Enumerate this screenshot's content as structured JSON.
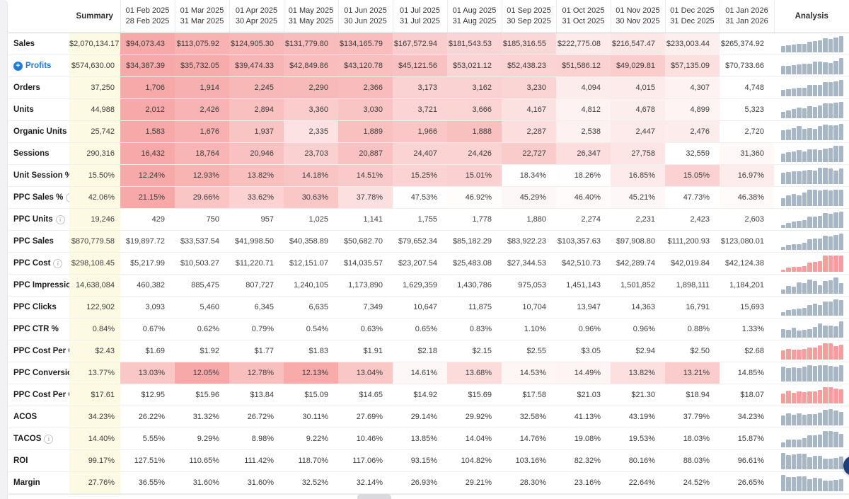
{
  "table": {
    "summary_label": "Summary",
    "analysis_label": "Analysis",
    "month_columns": [
      {
        "start": "01 Feb 2025",
        "end": "28 Feb 2025"
      },
      {
        "start": "01 Mar 2025",
        "end": "31 Mar 2025"
      },
      {
        "start": "01 Apr 2025",
        "end": "30 Apr 2025"
      },
      {
        "start": "01 May 2025",
        "end": "31 May 2025"
      },
      {
        "start": "01 Jun 2025",
        "end": "30 Jun 2025"
      },
      {
        "start": "01 Jul 2025",
        "end": "31 Jul 2025"
      },
      {
        "start": "01 Aug 2025",
        "end": "31 Aug 2025"
      },
      {
        "start": "01 Sep 2025",
        "end": "30 Sep 2025"
      },
      {
        "start": "01 Oct 2025",
        "end": "31 Oct 2025"
      },
      {
        "start": "01 Nov 2025",
        "end": "30 Nov 2025"
      },
      {
        "start": "01 Dec 2025",
        "end": "31 Dec 2025"
      },
      {
        "start": "01 Jan 2026",
        "end": "31 Jan 2026"
      }
    ],
    "rows": [
      {
        "label": "Sales",
        "info": false,
        "expandable": false,
        "heat": true,
        "bar": "gray",
        "summary": "$2,070,134.17",
        "values": [
          "$94,073.43",
          "$113,075.92",
          "$124,905.30",
          "$131,779.80",
          "$134,165.79",
          "$167,572.94",
          "$181,543.53",
          "$185,316.55",
          "$222,775.08",
          "$216,547.47",
          "$233,003.44",
          "$265,374.92"
        ]
      },
      {
        "label": "Profits",
        "info": false,
        "expandable": true,
        "heat": true,
        "bar": "gray",
        "summary": "$574,630.00",
        "values": [
          "$34,387.39",
          "$35,732.05",
          "$39,474.33",
          "$42,849.86",
          "$43,120.78",
          "$45,121.56",
          "$53,021.12",
          "$52,438.23",
          "$51,586.12",
          "$49,029.81",
          "$57,135.09",
          "$70,733.66"
        ]
      },
      {
        "label": "Orders",
        "info": false,
        "expandable": false,
        "heat": true,
        "bar": "gray",
        "summary": "37,250",
        "values": [
          "1,706",
          "1,914",
          "2,245",
          "2,290",
          "2,366",
          "3,173",
          "3,162",
          "3,230",
          "4,094",
          "4,015",
          "4,307",
          "4,748"
        ]
      },
      {
        "label": "Units",
        "info": false,
        "expandable": false,
        "heat": true,
        "bar": "gray",
        "summary": "44,988",
        "values": [
          "2,012",
          "2,426",
          "2,894",
          "3,360",
          "3,030",
          "3,721",
          "3,666",
          "4,167",
          "4,812",
          "4,678",
          "4,899",
          "5,323"
        ]
      },
      {
        "label": "Organic Units",
        "info": true,
        "expandable": false,
        "heat": true,
        "bar": "gray",
        "summary": "25,742",
        "values": [
          "1,583",
          "1,676",
          "1,937",
          "2,335",
          "1,889",
          "1,966",
          "1,888",
          "2,287",
          "2,538",
          "2,447",
          "2,476",
          "2,720"
        ]
      },
      {
        "label": "Sessions",
        "info": false,
        "expandable": false,
        "heat": true,
        "bar": "gray",
        "summary": "290,316",
        "values": [
          "16,432",
          "18,764",
          "20,946",
          "23,703",
          "20,887",
          "24,407",
          "24,426",
          "22,727",
          "26,347",
          "27,758",
          "32,559",
          "31,360"
        ]
      },
      {
        "label": "Unit Session %",
        "info": false,
        "expandable": false,
        "heat": true,
        "bar": "gray",
        "summary": "15.50%",
        "values": [
          "12.24%",
          "12.93%",
          "13.82%",
          "14.18%",
          "14.51%",
          "15.25%",
          "15.01%",
          "18.34%",
          "18.26%",
          "16.85%",
          "15.05%",
          "16.97%"
        ]
      },
      {
        "label": "PPC Sales %",
        "info": true,
        "expandable": false,
        "heat": true,
        "bar": "gray",
        "summary": "42.06%",
        "values": [
          "21.15%",
          "29.66%",
          "33.62%",
          "30.63%",
          "37.78%",
          "47.53%",
          "46.92%",
          "45.29%",
          "46.40%",
          "45.21%",
          "47.73%",
          "46.38%"
        ]
      },
      {
        "label": "PPC Units",
        "info": true,
        "expandable": false,
        "heat": false,
        "bar": "gray",
        "summary": "19,246",
        "values": [
          "429",
          "750",
          "957",
          "1,025",
          "1,141",
          "1,755",
          "1,778",
          "1,880",
          "2,274",
          "2,231",
          "2,423",
          "2,603"
        ]
      },
      {
        "label": "PPC Sales",
        "info": false,
        "expandable": false,
        "heat": false,
        "bar": "gray",
        "summary": "$870,779.58",
        "values": [
          "$19,897.72",
          "$33,537.54",
          "$41,998.50",
          "$40,358.89",
          "$50,682.70",
          "$79,652.34",
          "$85,182.29",
          "$83,922.23",
          "$103,357.63",
          "$97,908.80",
          "$111,200.93",
          "$123,080.01"
        ]
      },
      {
        "label": "PPC Cost",
        "info": true,
        "expandable": false,
        "heat": false,
        "bar": "red",
        "summary": "$298,108.45",
        "values": [
          "$5,217.99",
          "$10,503.27",
          "$11,220.71",
          "$12,151.07",
          "$14,035.57",
          "$23,207.54",
          "$25,483.08",
          "$27,344.53",
          "$42,510.73",
          "$42,289.74",
          "$42,019.84",
          "$42,124.38"
        ]
      },
      {
        "label": "PPC Impressions",
        "info": false,
        "expandable": false,
        "heat": false,
        "bar": "gray",
        "summary": "14,638,084",
        "values": [
          "460,382",
          "885,475",
          "807,727",
          "1,240,105",
          "1,173,890",
          "1,629,359",
          "1,430,786",
          "975,053",
          "1,451,143",
          "1,501,852",
          "1,898,111",
          "1,184,201"
        ]
      },
      {
        "label": "PPC Clicks",
        "info": false,
        "expandable": false,
        "heat": false,
        "bar": "gray",
        "summary": "122,902",
        "values": [
          "3,093",
          "5,460",
          "6,345",
          "6,635",
          "7,349",
          "10,647",
          "11,875",
          "10,704",
          "13,947",
          "14,363",
          "16,791",
          "15,693"
        ]
      },
      {
        "label": "PPC CTR %",
        "info": false,
        "expandable": false,
        "heat": false,
        "bar": "gray",
        "summary": "0.84%",
        "values": [
          "0.67%",
          "0.62%",
          "0.79%",
          "0.54%",
          "0.63%",
          "0.65%",
          "0.83%",
          "1.10%",
          "0.96%",
          "0.96%",
          "0.88%",
          "1.33%"
        ]
      },
      {
        "label": "PPC Cost Per Click",
        "info": false,
        "expandable": false,
        "heat": false,
        "bar": "red",
        "summary": "$2.43",
        "values": [
          "$1.69",
          "$1.92",
          "$1.77",
          "$1.83",
          "$1.91",
          "$2.18",
          "$2.15",
          "$2.55",
          "$3.05",
          "$2.94",
          "$2.50",
          "$2.68"
        ]
      },
      {
        "label": "PPC Conversion",
        "info": false,
        "expandable": false,
        "heat": true,
        "bar": "gray",
        "summary": "13.77%",
        "values": [
          "13.03%",
          "12.05%",
          "12.78%",
          "12.13%",
          "13.04%",
          "14.61%",
          "13.68%",
          "14.53%",
          "14.49%",
          "13.82%",
          "13.21%",
          "14.85%"
        ]
      },
      {
        "label": "PPC Cost Per Order",
        "info": false,
        "expandable": false,
        "heat": false,
        "bar": "red",
        "summary": "$17.61",
        "values": [
          "$12.95",
          "$15.96",
          "$13.84",
          "$15.09",
          "$14.65",
          "$14.92",
          "$15.69",
          "$17.58",
          "$21.03",
          "$21.30",
          "$18.94",
          "$18.07"
        ]
      },
      {
        "label": "ACOS",
        "info": false,
        "expandable": false,
        "heat": false,
        "bar": "gray",
        "summary": "34.23%",
        "values": [
          "26.22%",
          "31.32%",
          "26.72%",
          "30.11%",
          "27.69%",
          "29.14%",
          "29.92%",
          "32.58%",
          "41.13%",
          "43.19%",
          "37.79%",
          "34.23%"
        ]
      },
      {
        "label": "TACOS",
        "info": true,
        "expandable": false,
        "heat": false,
        "bar": "gray",
        "summary": "14.40%",
        "values": [
          "5.55%",
          "9.29%",
          "8.98%",
          "9.22%",
          "10.46%",
          "13.85%",
          "14.04%",
          "14.76%",
          "19.08%",
          "19.53%",
          "18.03%",
          "15.87%"
        ]
      },
      {
        "label": "ROI",
        "info": false,
        "expandable": false,
        "heat": false,
        "bar": "gray",
        "summary": "99.17%",
        "values": [
          "127.51%",
          "110.65%",
          "111.42%",
          "118.70%",
          "117.06%",
          "93.15%",
          "104.82%",
          "103.16%",
          "82.32%",
          "80.16%",
          "88.03%",
          "96.61%"
        ]
      },
      {
        "label": "Margin",
        "info": false,
        "expandable": false,
        "heat": false,
        "bar": "gray",
        "summary": "27.76%",
        "values": [
          "36.55%",
          "31.60%",
          "31.60%",
          "32.52%",
          "32.14%",
          "26.93%",
          "29.21%",
          "28.30%",
          "23.16%",
          "22.64%",
          "24.52%",
          "26.65%"
        ]
      }
    ]
  },
  "icons": {
    "expand_plus": "+",
    "info": "i"
  },
  "colors": {
    "heat_base": "#f27474",
    "summary_bg": "#fcfae3",
    "bar_gray": "#a7b7c6",
    "bar_red": "#f59e9e",
    "link_blue": "#1f7ad4",
    "chat_bubble": "#1d3e7a"
  }
}
